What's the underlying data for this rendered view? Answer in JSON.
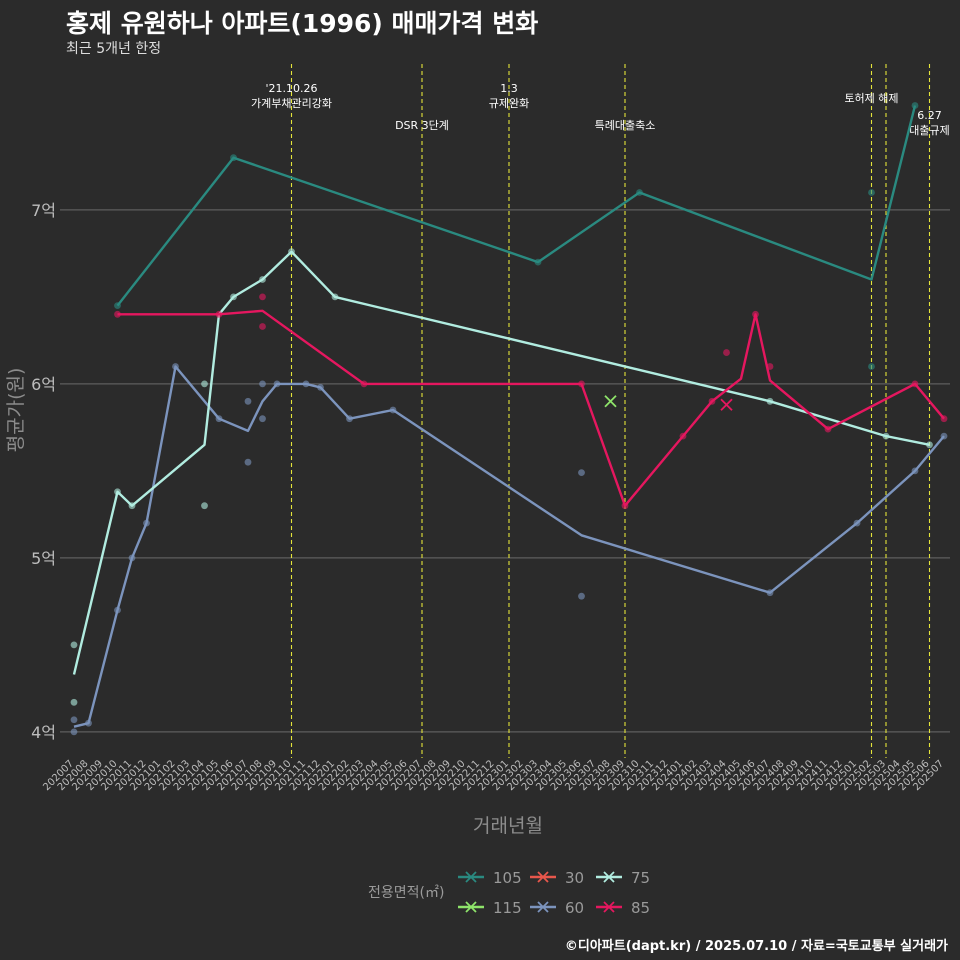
{
  "title": "홍제 유원하나 아파트(1996) 매매가격 변화",
  "subtitle": "최근 5개년 한정",
  "caption": "©디아파트(dapt.kr) / 2025.07.10 / 자료=국토교통부 실거래가",
  "chart_data": {
    "type": "line",
    "xlabel": "거래년월",
    "ylabel": "평균가(원)",
    "ylim": [
      3.85,
      7.85
    ],
    "y_ticks": [
      {
        "v": 4,
        "label": "4억"
      },
      {
        "v": 5,
        "label": "5억"
      },
      {
        "v": 6,
        "label": "6억"
      },
      {
        "v": 7,
        "label": "7억"
      }
    ],
    "x_labels": [
      "202007",
      "202008",
      "202009",
      "202010",
      "202011",
      "202012",
      "202101",
      "202102",
      "202103",
      "202104",
      "202105",
      "202106",
      "202107",
      "202108",
      "202109",
      "202110",
      "202111",
      "202112",
      "202201",
      "202202",
      "202203",
      "202204",
      "202205",
      "202206",
      "202207",
      "202208",
      "202209",
      "202210",
      "202211",
      "202212",
      "202301",
      "202302",
      "202303",
      "202304",
      "202305",
      "202306",
      "202307",
      "202308",
      "202309",
      "202310",
      "202311",
      "202312",
      "202401",
      "202402",
      "202403",
      "202404",
      "202405",
      "202406",
      "202407",
      "202408",
      "202409",
      "202410",
      "202411",
      "202412",
      "202501",
      "202502",
      "202503",
      "202504",
      "202505",
      "202506",
      "202507"
    ],
    "annotations": [
      {
        "x": 15,
        "lines": [
          "'21.10.26",
          "가계부채관리강화"
        ],
        "level": "top"
      },
      {
        "x": 24,
        "lines": [
          "DSR 3단계"
        ],
        "level": "mid"
      },
      {
        "x": 30,
        "lines": [
          "1.3",
          "규제완화"
        ],
        "level": "top"
      },
      {
        "x": 38,
        "lines": [
          "특례대출축소"
        ],
        "level": "mid"
      },
      {
        "x": 55,
        "lines": [
          "토허제 해제"
        ],
        "level": "high"
      },
      {
        "x": 56,
        "lines": [],
        "level": "none"
      },
      {
        "x": 59,
        "lines": [
          "6.27",
          "대출규제"
        ],
        "level": "low"
      }
    ],
    "legend": {
      "title": "전용면적(㎡)",
      "items": [
        {
          "name": "105",
          "color": "#2a8a80"
        },
        {
          "name": "115",
          "color": "#8ee46a"
        },
        {
          "name": "30",
          "color": "#e8574c"
        },
        {
          "name": "60",
          "color": "#7c94bd"
        },
        {
          "name": "75",
          "color": "#b1ece0"
        },
        {
          "name": "85",
          "color": "#e5175f"
        }
      ]
    },
    "series": [
      {
        "name": "105",
        "color": "#2a8a80",
        "line": [
          [
            3,
            6.45
          ],
          [
            11,
            7.3
          ],
          [
            32,
            6.7
          ],
          [
            39,
            7.1
          ],
          [
            55,
            6.6
          ],
          [
            58,
            7.6
          ]
        ],
        "points": [
          [
            3,
            6.45
          ],
          [
            11,
            7.3
          ],
          [
            32,
            6.7
          ],
          [
            39,
            7.1
          ],
          [
            55,
            7.1
          ],
          [
            55,
            6.1
          ],
          [
            58,
            7.6
          ]
        ],
        "crosses": []
      },
      {
        "name": "115",
        "color": "#8ee46a",
        "line": [],
        "points": [],
        "crosses": [
          [
            37,
            5.9
          ]
        ]
      },
      {
        "name": "30",
        "color": "#e8574c",
        "line": [],
        "points": [],
        "crosses": []
      },
      {
        "name": "60",
        "color": "#7c94bd",
        "line": [
          [
            0,
            4.03
          ],
          [
            1,
            4.05
          ],
          [
            3,
            4.7
          ],
          [
            4,
            5.0
          ],
          [
            5,
            5.2
          ],
          [
            7,
            6.1
          ],
          [
            10,
            5.8
          ],
          [
            12,
            5.73
          ],
          [
            13,
            5.9
          ],
          [
            14,
            6.0
          ],
          [
            16,
            6.0
          ],
          [
            17,
            5.98
          ],
          [
            19,
            5.8
          ],
          [
            22,
            5.85
          ],
          [
            35,
            5.13
          ],
          [
            48,
            4.8
          ],
          [
            54,
            5.2
          ],
          [
            58,
            5.5
          ],
          [
            60,
            5.7
          ]
        ],
        "points": [
          [
            0,
            4.0
          ],
          [
            0,
            4.07
          ],
          [
            1,
            4.05
          ],
          [
            3,
            4.7
          ],
          [
            4,
            5.0
          ],
          [
            5,
            5.2
          ],
          [
            7,
            6.1
          ],
          [
            10,
            5.8
          ],
          [
            12,
            5.9
          ],
          [
            12,
            5.55
          ],
          [
            13,
            6.0
          ],
          [
            13,
            5.8
          ],
          [
            14,
            6.0
          ],
          [
            16,
            6.0
          ],
          [
            17,
            5.98
          ],
          [
            19,
            5.8
          ],
          [
            22,
            5.85
          ],
          [
            35,
            5.49
          ],
          [
            35,
            4.78
          ],
          [
            48,
            4.8
          ],
          [
            54,
            5.2
          ],
          [
            58,
            5.5
          ],
          [
            60,
            5.7
          ]
        ],
        "crosses": []
      },
      {
        "name": "75",
        "color": "#b1ece0",
        "line": [
          [
            0,
            4.33
          ],
          [
            3,
            5.38
          ],
          [
            4,
            5.3
          ],
          [
            9,
            5.65
          ],
          [
            10,
            6.4
          ],
          [
            11,
            6.5
          ],
          [
            13,
            6.6
          ],
          [
            15,
            6.76
          ],
          [
            18,
            6.5
          ],
          [
            48,
            5.9
          ],
          [
            56,
            5.7
          ],
          [
            59,
            5.65
          ]
        ],
        "points": [
          [
            0,
            4.5
          ],
          [
            0,
            4.17
          ],
          [
            3,
            5.38
          ],
          [
            4,
            5.3
          ],
          [
            9,
            6.0
          ],
          [
            9,
            5.3
          ],
          [
            11,
            6.5
          ],
          [
            13,
            6.6
          ],
          [
            15,
            6.76
          ],
          [
            18,
            6.5
          ],
          [
            48,
            5.9
          ],
          [
            56,
            5.7
          ],
          [
            59,
            5.65
          ]
        ],
        "crosses": []
      },
      {
        "name": "85",
        "color": "#e5175f",
        "line": [
          [
            3,
            6.4
          ],
          [
            10,
            6.4
          ],
          [
            13,
            6.42
          ],
          [
            20,
            6.0
          ],
          [
            35,
            6.0
          ],
          [
            38,
            5.3
          ],
          [
            42,
            5.7
          ],
          [
            44,
            5.9
          ],
          [
            46,
            6.03
          ],
          [
            47,
            6.4
          ],
          [
            48,
            6.02
          ],
          [
            52,
            5.74
          ],
          [
            58,
            6.0
          ],
          [
            60,
            5.8
          ]
        ],
        "points": [
          [
            3,
            6.4
          ],
          [
            10,
            6.4
          ],
          [
            13,
            6.5
          ],
          [
            13,
            6.33
          ],
          [
            20,
            6.0
          ],
          [
            35,
            6.0
          ],
          [
            38,
            5.3
          ],
          [
            42,
            5.7
          ],
          [
            44,
            5.9
          ],
          [
            45,
            6.18
          ],
          [
            47,
            6.4
          ],
          [
            48,
            6.1
          ],
          [
            52,
            5.74
          ],
          [
            58,
            6.0
          ],
          [
            60,
            5.8
          ]
        ],
        "crosses": [
          [
            45,
            5.88
          ]
        ]
      }
    ]
  }
}
